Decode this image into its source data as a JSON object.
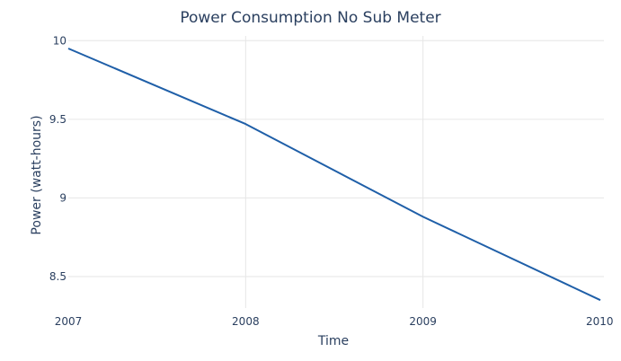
{
  "chart_data": {
    "type": "line",
    "title": "Power Consumption No Sub Meter",
    "xlabel": "Time",
    "ylabel": "Power (watt-hours)",
    "x": [
      2007,
      2008,
      2009,
      2010
    ],
    "series": [
      {
        "values": [
          9.95,
          9.47,
          8.88,
          8.35
        ],
        "color": "#1f5fa8"
      }
    ],
    "xlim": [
      2007,
      2010
    ],
    "ylim": [
      8.3,
      10.03
    ],
    "x_ticks": [
      "2007",
      "2008",
      "2009",
      "2010"
    ],
    "y_ticks": [
      "8.5",
      "9",
      "9.5",
      "10"
    ],
    "grid": true,
    "gridline_color": "#e6e6e6",
    "legend": "none"
  }
}
